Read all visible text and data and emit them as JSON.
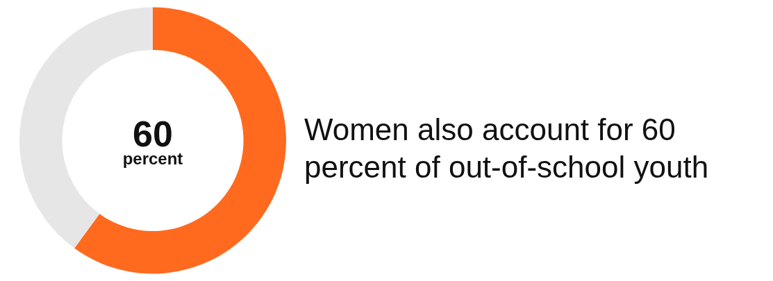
{
  "chart_data": {
    "type": "donut",
    "title": "Women also account for 60 percent of out-of-school youth",
    "categories": [
      null,
      null
    ],
    "values": [
      60,
      40
    ],
    "colors": [
      "#ff6a1f",
      "#e6e6e6"
    ],
    "annotations": [
      "60 percent"
    ],
    "legend": false
  }
}
